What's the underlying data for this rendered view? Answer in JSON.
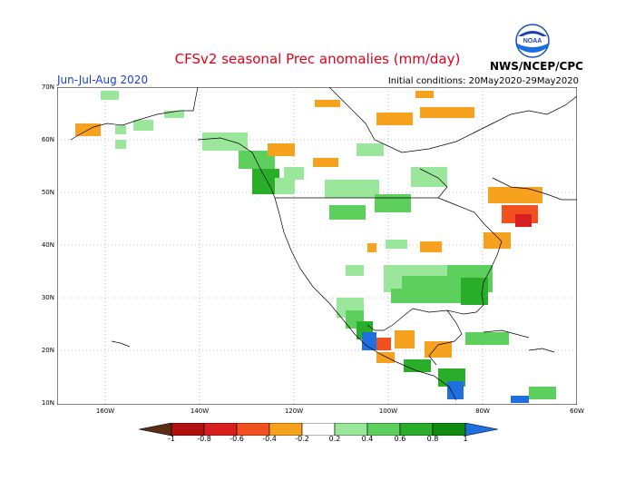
{
  "title": "CFSv2 seasonal Prec anomalies (mm/day)",
  "org": "NWS/NCEP/CPC",
  "logo_text": "NOAA",
  "season": "Jun-Jul-Aug 2020",
  "init": "Initial conditions: 20May2020-29May2020",
  "lat_labels": [
    "70N",
    "60N",
    "50N",
    "40N",
    "30N",
    "20N",
    "10N"
  ],
  "lon_labels": [
    "160W",
    "140W",
    "120W",
    "100W",
    "80W",
    "60W"
  ],
  "colorbar": {
    "labels": [
      "-1",
      "-0.8",
      "-0.6",
      "-0.4",
      "-0.2",
      "0.2",
      "0.4",
      "0.6",
      "0.8",
      "1"
    ],
    "colors": [
      "#5a2e13",
      "#b01010",
      "#d81f1f",
      "#f2501e",
      "#f6a21e",
      "#ffffff",
      "#9ae69a",
      "#5ccf5c",
      "#2aae2a",
      "#0f8c0f",
      "#1f6fe0"
    ]
  },
  "colors": {
    "title": "#e1001a",
    "season": "#1a3fd8",
    "wet_light": "#9ae69a",
    "wet": "#5ccf5c",
    "wet_dark": "#2aae2a",
    "wet_deep": "#0f8c0f",
    "wet_max": "#1f6fe0",
    "dry": "#f6a21e",
    "dry_strong": "#f2501e",
    "dry_deep": "#d81f1f"
  }
}
